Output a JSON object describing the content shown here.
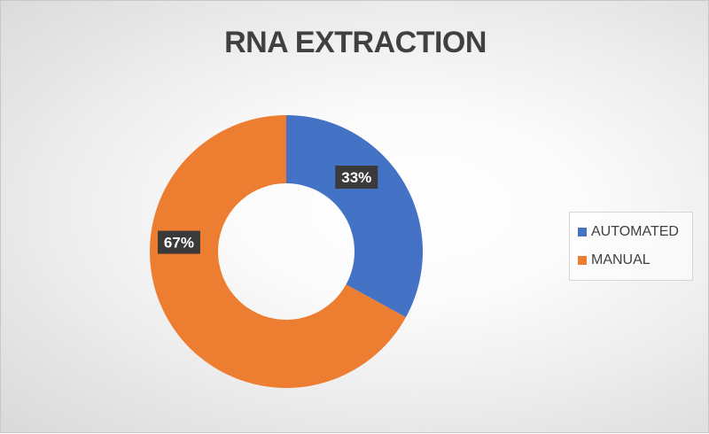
{
  "chart_data": {
    "type": "pie",
    "variant": "donut",
    "title": "RNA EXTRACTION",
    "categories": [
      "AUTOMATED",
      "MANUAL"
    ],
    "values": [
      33,
      67
    ],
    "value_labels": [
      "33%",
      "67%"
    ],
    "colors": [
      "#4472C4",
      "#ED7D31"
    ],
    "legend_position": "right"
  }
}
